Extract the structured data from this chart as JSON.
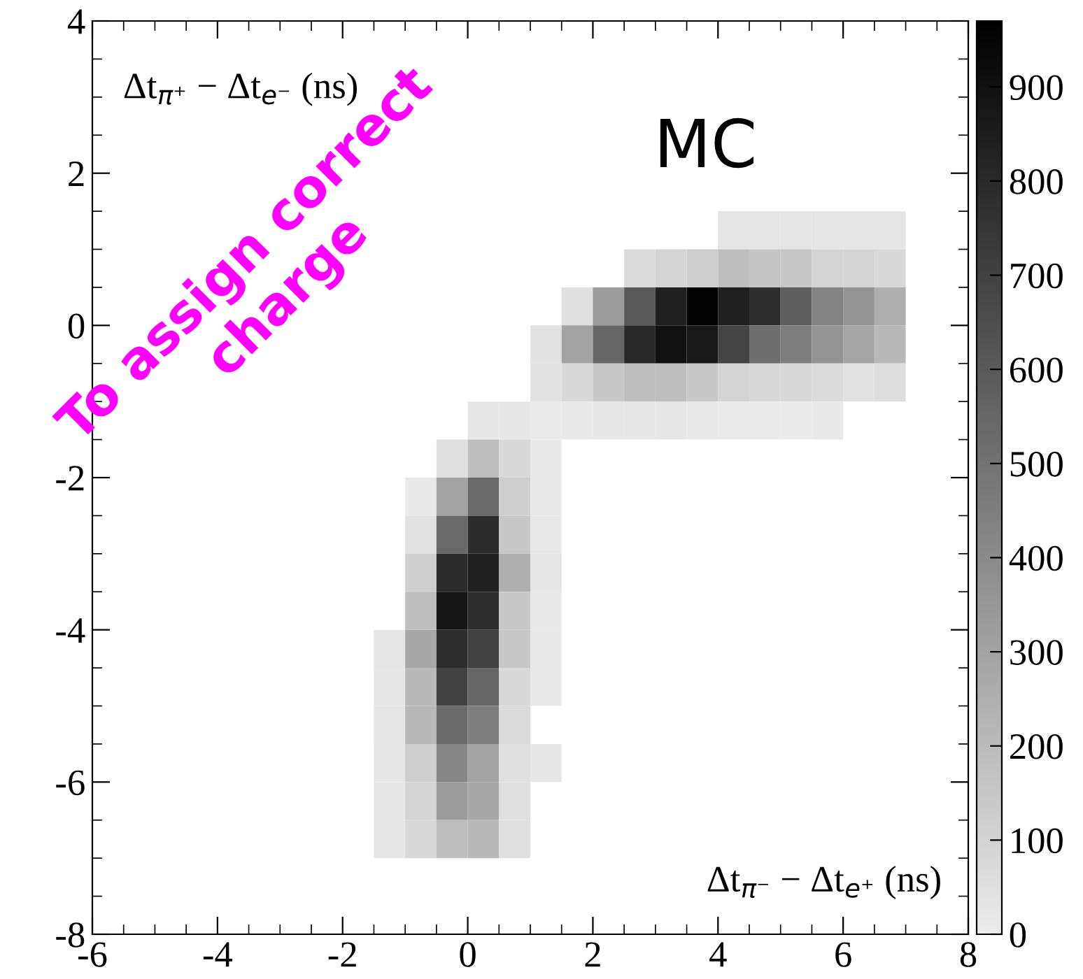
{
  "chart_data": {
    "type": "scatter",
    "xlabel": "Δt$_{π⁻}$ − Δt$_{e⁺}$ (ns)",
    "ylabel": "Δt$_{π⁺}$ − Δt$_{e⁻}$ (ns)",
    "annotations": [
      "MC",
      "To assign correct\ncharge"
    ],
    "marker": "square",
    "x": [
      4.25,
      4.75,
      5.25,
      5.75,
      6.25,
      6.75,
      2.75,
      3.25,
      3.75,
      4.25,
      4.75,
      5.25,
      5.75,
      6.25,
      6.75,
      1.75,
      2.25,
      2.75,
      3.25,
      3.75,
      4.25,
      4.75,
      5.25,
      5.75,
      6.25,
      6.75,
      1.25,
      1.75,
      2.25,
      2.75,
      3.25,
      3.75,
      4.25,
      4.75,
      5.25,
      5.75,
      6.25,
      6.75,
      1.25,
      1.75,
      2.25,
      2.75,
      3.25,
      3.75,
      4.25,
      4.75,
      5.25,
      5.75,
      6.25,
      6.75,
      0.25,
      0.75,
      1.25,
      1.75,
      2.25,
      2.75,
      3.25,
      3.75,
      4.25,
      4.75,
      5.25,
      5.75,
      -0.25,
      0.25,
      0.75,
      1.25,
      -0.75,
      -0.25,
      0.25,
      0.75,
      1.25,
      -0.75,
      -0.25,
      0.25,
      0.75,
      1.25,
      -0.75,
      -0.25,
      0.25,
      0.75,
      1.25,
      -0.75,
      -0.25,
      0.25,
      0.75,
      1.25,
      -1.25,
      -0.75,
      -0.25,
      0.25,
      0.75,
      1.25,
      -1.25,
      -0.75,
      -0.25,
      0.25,
      0.75,
      1.25,
      -1.25,
      -0.75,
      -0.25,
      0.25,
      0.75,
      -1.25,
      -0.75,
      -0.25,
      0.25,
      0.75,
      1.25,
      -1.25,
      -0.75,
      -0.25,
      0.25,
      0.75,
      -1.25,
      -0.75,
      -0.25,
      0.25,
      0.75
    ],
    "values": [
      1.25,
      1.25,
      1.25,
      1.25,
      1.25,
      1.25,
      0.75,
      0.75,
      0.75,
      0.75,
      0.75,
      0.75,
      0.75,
      0.75,
      0.75,
      0.25,
      0.25,
      0.25,
      0.25,
      0.25,
      0.25,
      0.25,
      0.25,
      0.25,
      0.25,
      0.25,
      -0.25,
      -0.25,
      -0.25,
      -0.25,
      -0.25,
      -0.25,
      -0.25,
      -0.25,
      -0.25,
      -0.25,
      -0.25,
      -0.25,
      -0.75,
      -0.75,
      -0.75,
      -0.75,
      -0.75,
      -0.75,
      -0.75,
      -0.75,
      -0.75,
      -0.75,
      -0.75,
      -0.75,
      -1.25,
      -1.25,
      -1.25,
      -1.25,
      -1.25,
      -1.25,
      -1.25,
      -1.25,
      -1.25,
      -1.25,
      -1.25,
      -1.25,
      -1.75,
      -1.75,
      -1.75,
      -1.75,
      -2.25,
      -2.25,
      -2.25,
      -2.25,
      -2.25,
      -2.75,
      -2.75,
      -2.75,
      -2.75,
      -2.75,
      -3.25,
      -3.25,
      -3.25,
      -3.25,
      -3.25,
      -3.75,
      -3.75,
      -3.75,
      -3.75,
      -3.75,
      -4.25,
      -4.25,
      -4.25,
      -4.25,
      -4.25,
      -4.25,
      -4.75,
      -4.75,
      -4.75,
      -4.75,
      -4.75,
      -4.75,
      -5.25,
      -5.25,
      -5.25,
      -5.25,
      -5.25,
      -5.75,
      -5.75,
      -5.75,
      -5.75,
      -5.75,
      -5.75,
      -6.25,
      -6.25,
      -6.25,
      -6.25,
      -6.25,
      -6.75,
      -6.75,
      -6.75,
      -6.75,
      -6.75
    ],
    "cvalues": [
      30,
      30,
      30,
      30,
      30,
      30,
      70,
      100,
      120,
      190,
      160,
      150,
      100,
      100,
      80,
      50,
      330,
      610,
      840,
      960,
      840,
      780,
      580,
      430,
      360,
      250,
      40,
      300,
      550,
      810,
      900,
      870,
      690,
      520,
      450,
      360,
      290,
      210,
      40,
      80,
      150,
      190,
      190,
      150,
      100,
      80,
      80,
      70,
      40,
      60,
      20,
      20,
      10,
      15,
      20,
      20,
      25,
      15,
      10,
      10,
      5,
      15,
      50,
      190,
      80,
      15,
      15,
      300,
      540,
      120,
      15,
      40,
      540,
      790,
      150,
      15,
      120,
      790,
      840,
      250,
      30,
      190,
      880,
      780,
      150,
      15,
      30,
      280,
      780,
      700,
      150,
      15,
      20,
      210,
      700,
      550,
      80,
      15,
      30,
      210,
      540,
      450,
      70,
      20,
      120,
      420,
      300,
      50,
      20,
      20,
      100,
      330,
      280,
      50,
      20,
      80,
      190,
      210,
      50
    ],
    "clim": [
      0,
      970
    ],
    "cticks": [
      0,
      100,
      200,
      300,
      400,
      500,
      600,
      700,
      800,
      900
    ],
    "xlim": [
      -6,
      8
    ],
    "ylim": [
      -8,
      4
    ],
    "xticks": [
      {
        "value": -6,
        "label": "-6"
      },
      {
        "value": -4,
        "label": "-4"
      },
      {
        "value": -2,
        "label": "-2"
      },
      0,
      2,
      4,
      6,
      8
    ],
    "yticks": [
      {
        "value": -8,
        "label": "-8"
      },
      {
        "value": -6,
        "label": "-6"
      },
      {
        "value": -4,
        "label": "-4"
      },
      {
        "value": -2,
        "label": "-2"
      },
      0,
      2,
      4
    ]
  }
}
